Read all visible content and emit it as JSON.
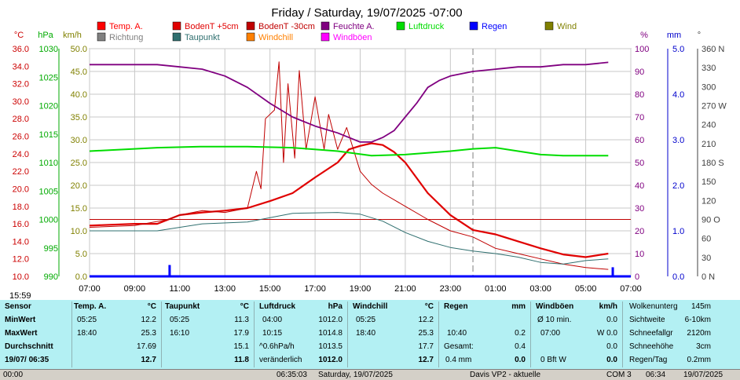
{
  "title": "Friday / Saturday, 19/07/2025  -07:00",
  "axis_units": {
    "temp": "°C",
    "pressure": "hPa",
    "wind": "km/h",
    "humidity": "%",
    "rain": "mm",
    "direction": "°"
  },
  "legend": [
    {
      "label": "Temp. A.",
      "color": "#ff0000"
    },
    {
      "label": "BodenT +5cm",
      "color": "#e00000"
    },
    {
      "label": "BodenT -30cm",
      "color": "#c00000"
    },
    {
      "label": "Feuchte A.",
      "color": "#800080"
    },
    {
      "label": "Luftdruck",
      "color": "#00dd00"
    },
    {
      "label": "Regen",
      "color": "#0000ff"
    },
    {
      "label": "Wind",
      "color": "#808000"
    },
    {
      "label": "Richtung",
      "color": "#808080"
    },
    {
      "label": "Taupunkt",
      "color": "#2f6f6f"
    },
    {
      "label": "Windchill",
      "color": "#ff8000"
    },
    {
      "label": "Windböen",
      "color": "#ff00ff"
    }
  ],
  "colors": {
    "temp_axis": "#cc0000",
    "pressure_axis": "#00aa00",
    "wind_axis": "#808000",
    "humidity_axis": "#800080",
    "rain_axis": "#0000cc",
    "dir_axis": "#404040"
  },
  "time_labels": [
    "07:00",
    "09:00",
    "11:00",
    "13:00",
    "15:00",
    "17:00",
    "19:00",
    "21:00",
    "23:00",
    "01:00",
    "03:00",
    "05:00",
    "07:00"
  ],
  "temp_ticks": [
    "36.0",
    "34.0",
    "32.0",
    "30.0",
    "28.0",
    "26.0",
    "24.0",
    "22.0",
    "20.0",
    "18.0",
    "16.0",
    "14.0",
    "12.0",
    "10.0"
  ],
  "pressure_ticks": [
    "1030",
    "1025",
    "1020",
    "1015",
    "1010",
    "1005",
    "1000",
    "995",
    "990"
  ],
  "wind_ticks": [
    "50.0",
    "45.0",
    "40.0",
    "35.0",
    "30.0",
    "25.0",
    "20.0",
    "15.0",
    "10.0",
    "5.0",
    "0.0"
  ],
  "humidity_ticks": [
    "100",
    "90",
    "80",
    "70",
    "60",
    "50",
    "40",
    "30",
    "20",
    "10",
    "0"
  ],
  "rain_ticks": [
    "5.0",
    "4.0",
    "3.0",
    "2.0",
    "1.0",
    "0.0"
  ],
  "dir_ticks": [
    "360 N",
    "330",
    "300",
    "270 W",
    "240",
    "210",
    "180 S",
    "150",
    "120",
    "90 O",
    "60",
    "30",
    "0   N"
  ],
  "chart_data": {
    "type": "line",
    "title": "Friday / Saturday, 19/07/2025  -07:00",
    "x_range": [
      "07:00",
      "07:00"
    ],
    "ylim_temp": [
      10,
      36
    ],
    "ylim_pressure": [
      990,
      1030
    ],
    "ylim_wind": [
      0,
      50
    ],
    "ylim_humidity": [
      0,
      100
    ],
    "ylim_rain": [
      0,
      5
    ],
    "ylim_direction": [
      0,
      360
    ],
    "grid": true,
    "series": [
      {
        "name": "Temp. A.",
        "axis": "temp",
        "hours": [
          0,
          2,
          3,
          3.5,
          4,
          5,
          6,
          7,
          8,
          9,
          10,
          11,
          11.5,
          12,
          12.5,
          13,
          13.5,
          14,
          15,
          16,
          17,
          18,
          19,
          20,
          21,
          22,
          23
        ],
        "values": [
          15.8,
          16.0,
          16.0,
          16.5,
          17.0,
          17.3,
          17.5,
          17.8,
          18.6,
          19.5,
          21.3,
          23.0,
          24.5,
          24.9,
          25.2,
          25.0,
          24.2,
          23.0,
          19.5,
          17.0,
          15.3,
          14.8,
          14.0,
          13.2,
          12.5,
          12.2,
          12.6
        ]
      },
      {
        "name": "BodenT +5cm",
        "axis": "temp",
        "hours": [
          0,
          2,
          3.5,
          4,
          5,
          6,
          7,
          7.4,
          7.6,
          7.8,
          8.2,
          8.4,
          8.6,
          8.8,
          9.1,
          9.3,
          9.6,
          10,
          10.4,
          10.6,
          11,
          11.4,
          12,
          12.5,
          13,
          14,
          15,
          16,
          17,
          18,
          19,
          20,
          21,
          22,
          23
        ],
        "values": [
          15.6,
          15.8,
          16.5,
          17.0,
          17.5,
          17.3,
          17.8,
          22.0,
          20.0,
          28.0,
          29.0,
          34.5,
          23.0,
          32.0,
          23.5,
          33.5,
          24.5,
          30.5,
          24.5,
          28.5,
          24.5,
          27.0,
          22.0,
          20.5,
          19.5,
          18.0,
          16.5,
          15.2,
          14.5,
          13.2,
          12.6,
          12.0,
          11.4,
          11.0,
          10.8
        ]
      },
      {
        "name": "BodenT -30cm",
        "axis": "temp",
        "hours": [
          0,
          24
        ],
        "values": [
          16.5,
          16.5
        ]
      },
      {
        "name": "Taupunkt",
        "axis": "temp",
        "hours": [
          0,
          3,
          5,
          7,
          9,
          11,
          12,
          13,
          14,
          15,
          16,
          17,
          18,
          19,
          20,
          21,
          22,
          23
        ],
        "values": [
          15.2,
          15.2,
          16.0,
          16.2,
          17.2,
          17.3,
          17.1,
          16.3,
          15.0,
          14.0,
          13.3,
          12.9,
          12.6,
          12.2,
          11.6,
          11.4,
          11.8,
          12.0
        ]
      },
      {
        "name": "Luftdruck",
        "axis": "pressure",
        "hours": [
          0,
          2,
          3,
          5,
          7,
          9,
          11,
          12.5,
          14,
          16,
          17,
          18,
          19,
          20,
          21,
          22,
          23
        ],
        "values": [
          1012.0,
          1012.4,
          1012.6,
          1012.8,
          1012.8,
          1012.6,
          1012.0,
          1011.2,
          1011.4,
          1012.0,
          1012.4,
          1012.6,
          1012.0,
          1011.4,
          1011.2,
          1011.2,
          1011.2
        ]
      },
      {
        "name": "Feuchte A.",
        "axis": "humidity",
        "hours": [
          0,
          2,
          3,
          4,
          5,
          6,
          7,
          8,
          9,
          10,
          11,
          11.5,
          12,
          12.5,
          13,
          13.5,
          14,
          14.5,
          15,
          15.5,
          16,
          17,
          18,
          19,
          20,
          21,
          22,
          23
        ],
        "values": [
          93,
          93,
          93,
          92,
          91,
          88,
          83,
          76,
          70,
          66,
          63,
          61,
          59,
          59,
          61,
          64,
          70,
          76,
          83,
          86,
          88,
          90,
          91,
          92,
          92,
          93,
          93,
          94
        ]
      },
      {
        "name": "Regen",
        "axis": "rain",
        "hours": [
          0,
          24
        ],
        "values": [
          0.0,
          0.0
        ]
      }
    ],
    "stats": {
      "sensor_header": "Sensor",
      "min_label": "MinWert",
      "max_label": "MaxWert",
      "avg_label": "Durchschnitt",
      "current_label": "19/07/ 06:35",
      "temp": {
        "name": "Temp. A.",
        "unit": "°C",
        "min_time": "05:25",
        "min": "12.2",
        "max_time": "18:40",
        "max": "25.3",
        "avg": "17.69",
        "current": "12.7"
      },
      "dew": {
        "name": "Taupunkt",
        "unit": "°C",
        "min_time": "05:25",
        "min": "11.3",
        "max_time": "16:10",
        "max": "17.9",
        "avg": "15.1",
        "current": "11.8"
      },
      "pressure": {
        "name": "Luftdruck",
        "unit": "hPa",
        "min_time": "04:00",
        "min": "1012.0",
        "max_time": "10:15",
        "max": "1014.8",
        "avg_label": "^0.6hPa/h",
        "avg": "1013.5",
        "trend": "veränderlich",
        "current": "1012.0"
      },
      "chill": {
        "name": "Windchill",
        "unit": "°C",
        "min_time": "05:25",
        "min": "12.2",
        "max_time": "18:40",
        "max": "25.3",
        "avg": "17.7",
        "current": "12.7"
      },
      "rain": {
        "name": "Regen",
        "unit": "mm",
        "r2_label": "10:40",
        "r2": "0.2",
        "r3_label": "Gesamt:",
        "r3": "0.4",
        "r4_label": "0.4 mm",
        "r4": "0.0"
      },
      "gust": {
        "name": "Windböen",
        "unit": "km/h",
        "r1_label": "Ø 10 min.",
        "r1": "0.0",
        "r2_label": "07:00",
        "r2": "W 0.0",
        "r3": "0.0",
        "r4_label": "0 Bft W",
        "r4": "0.0"
      },
      "other": [
        {
          "label": "Wolkenunterg",
          "value": "145m"
        },
        {
          "label": "Sichtweite",
          "value": "6-10km"
        },
        {
          "label": "Schneefallgr",
          "value": "2120m"
        },
        {
          "label": "Schneehöhe",
          "value": "3cm"
        },
        {
          "label": "Regen/Tag",
          "value": "0.2mm"
        }
      ]
    }
  },
  "statusbar": {
    "left": "00:00",
    "mid1": "06:35:03",
    "mid2": "Saturday, 19/07/2025",
    "mid3": "Davis VP2 - aktuelle",
    "com": "COM 3",
    "time": "06:34",
    "date": "19/07/2025"
  },
  "now_label": "15:59"
}
